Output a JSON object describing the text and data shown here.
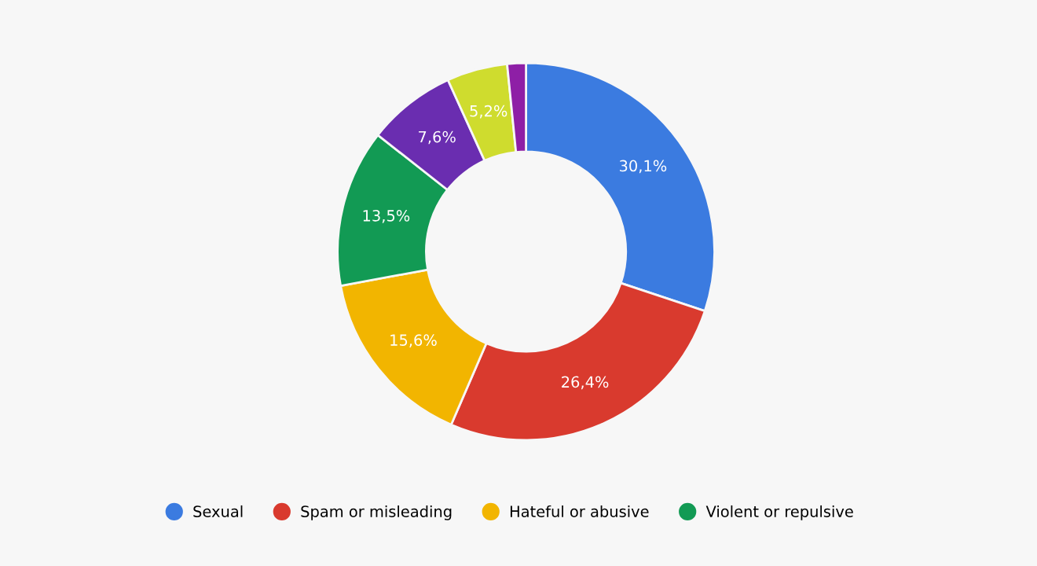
{
  "chart_data": {
    "type": "donut",
    "categories": [
      "Sexual",
      "Spam or misleading",
      "Hateful or abusive",
      "Violent or repulsive",
      null,
      null,
      null
    ],
    "values": [
      30.1,
      26.4,
      15.6,
      13.5,
      7.6,
      5.2,
      1.6
    ],
    "colors": [
      "#3b7be0",
      "#d93a2e",
      "#f2b500",
      "#129a54",
      "#6a2db0",
      "#cfdc2e",
      "#8e1fa6"
    ],
    "value_labels": [
      "30,1%",
      "26,4%",
      "15,6%",
      "13,5%",
      "7,6%",
      "5,2%",
      null
    ],
    "legend": "bottom"
  }
}
